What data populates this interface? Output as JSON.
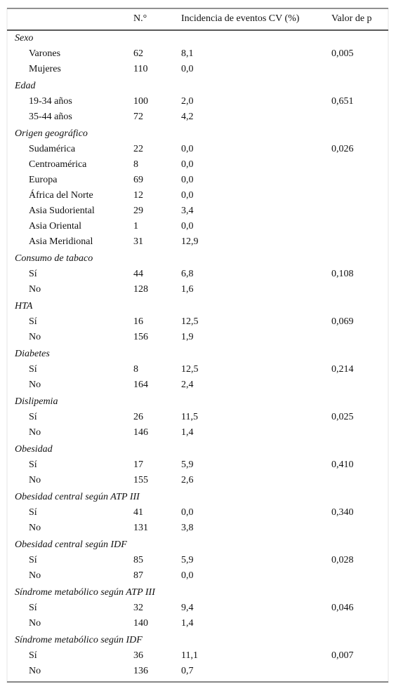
{
  "header": {
    "columns": [
      "N.°",
      "Incidencia de eventos CV (%)",
      "Valor de p"
    ]
  },
  "groups": [
    {
      "title": "Sexo",
      "rows": [
        {
          "label": "Varones",
          "n": "62",
          "incidence": "8,1",
          "p": "0,005"
        },
        {
          "label": "Mujeres",
          "n": "110",
          "incidence": "0,0"
        }
      ]
    },
    {
      "title": "Edad",
      "rows": [
        {
          "label": "19-34 años",
          "n": "100",
          "incidence": "2,0",
          "p": "0,651"
        },
        {
          "label": "35-44 años",
          "n": "72",
          "incidence": "4,2"
        }
      ]
    },
    {
      "title": "Origen geográfico",
      "rows": [
        {
          "label": "Sudamérica",
          "n": "22",
          "incidence": "0,0",
          "p": "0,026"
        },
        {
          "label": "Centroamérica",
          "n": "8",
          "incidence": "0,0"
        },
        {
          "label": "Europa",
          "n": "69",
          "incidence": "0,0"
        },
        {
          "label": "África del Norte",
          "n": "12",
          "incidence": "0,0"
        },
        {
          "label": "Asia Sudoriental",
          "n": "29",
          "incidence": "3,4"
        },
        {
          "label": "Asia Oriental",
          "n": "1",
          "incidence": "0,0"
        },
        {
          "label": "Asia Meridional",
          "n": "31",
          "incidence": "12,9"
        }
      ]
    },
    {
      "title": "Consumo de tabaco",
      "rows": [
        {
          "label": "Sí",
          "n": "44",
          "incidence": "6,8",
          "p": "0,108"
        },
        {
          "label": "No",
          "n": "128",
          "incidence": "1,6"
        }
      ]
    },
    {
      "title": "HTA",
      "rows": [
        {
          "label": "Sí",
          "n": "16",
          "incidence": "12,5",
          "p": "0,069"
        },
        {
          "label": "No",
          "n": "156",
          "incidence": "1,9"
        }
      ]
    },
    {
      "title": "Diabetes",
      "rows": [
        {
          "label": "Sí",
          "n": "8",
          "incidence": "12,5",
          "p": "0,214"
        },
        {
          "label": "No",
          "n": "164",
          "incidence": "2,4"
        }
      ]
    },
    {
      "title": "Dislipemia",
      "rows": [
        {
          "label": "Sí",
          "n": "26",
          "incidence": "11,5",
          "p": "0,025"
        },
        {
          "label": "No",
          "n": "146",
          "incidence": "1,4"
        }
      ]
    },
    {
      "title": "Obesidad",
      "rows": [
        {
          "label": "Sí",
          "n": "17",
          "incidence": "5,9",
          "p": "0,410"
        },
        {
          "label": "No",
          "n": "155",
          "incidence": "2,6"
        }
      ]
    },
    {
      "title": "Obesidad central según ATP III",
      "rows": [
        {
          "label": "Sí",
          "n": "41",
          "incidence": "0,0",
          "p": "0,340"
        },
        {
          "label": "No",
          "n": "131",
          "incidence": "3,8"
        }
      ]
    },
    {
      "title": "Obesidad central según IDF",
      "rows": [
        {
          "label": "Sí",
          "n": "85",
          "incidence": "5,9",
          "p": "0,028"
        },
        {
          "label": "No",
          "n": "87",
          "incidence": "0,0"
        }
      ]
    },
    {
      "title": "Síndrome metabólico según ATP III",
      "rows": [
        {
          "label": "Sí",
          "n": "32",
          "incidence": "9,4",
          "p": "0,046"
        },
        {
          "label": "No",
          "n": "140",
          "incidence": "1,4"
        }
      ]
    },
    {
      "title": "Síndrome metabólico según IDF",
      "rows": [
        {
          "label": "Sí",
          "n": "36",
          "incidence": "11,1",
          "p": "0,007"
        },
        {
          "label": "No",
          "n": "136",
          "incidence": "0,7"
        }
      ]
    }
  ]
}
